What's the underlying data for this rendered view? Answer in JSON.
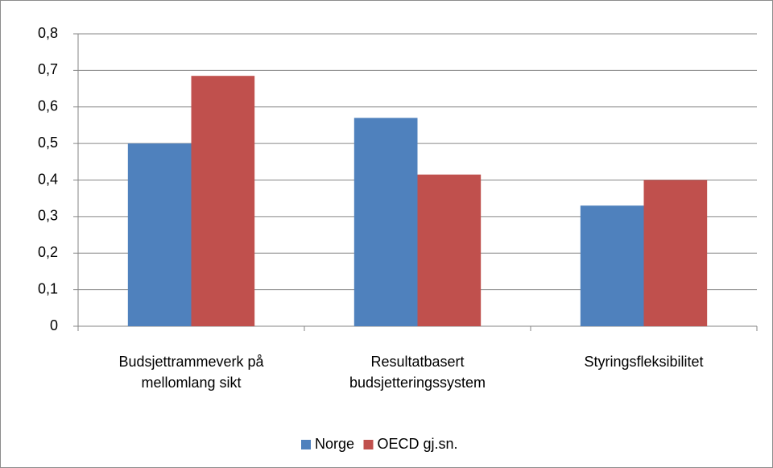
{
  "chart_data": {
    "type": "bar",
    "categories": [
      "Budsjettrammeverk på mellomlang sikt",
      "Resultatbasert budsjetteringssystem",
      "Styringsfleksibilitet"
    ],
    "series": [
      {
        "name": "Norge",
        "color": "#4f81bd",
        "values": [
          0.5,
          0.57,
          0.33
        ]
      },
      {
        "name": "OECD gj.sn.",
        "color": "#c0504d",
        "values": [
          0.685,
          0.415,
          0.4
        ]
      }
    ],
    "ylim": [
      0,
      0.8
    ],
    "yticks": [
      0,
      {
        "value": 0.1,
        "label": "0,1"
      },
      {
        "value": 0.2,
        "label": "0,2"
      },
      {
        "value": 0.3,
        "label": "0,3"
      },
      {
        "value": 0.4,
        "label": "0,4"
      },
      {
        "value": 0.5,
        "label": "0,5"
      },
      {
        "value": 0.6,
        "label": "0,6"
      },
      {
        "value": 0.7,
        "label": "0,7"
      },
      {
        "value": 0.8,
        "label": "0,8"
      }
    ],
    "grid": true,
    "legend": "bottom"
  }
}
